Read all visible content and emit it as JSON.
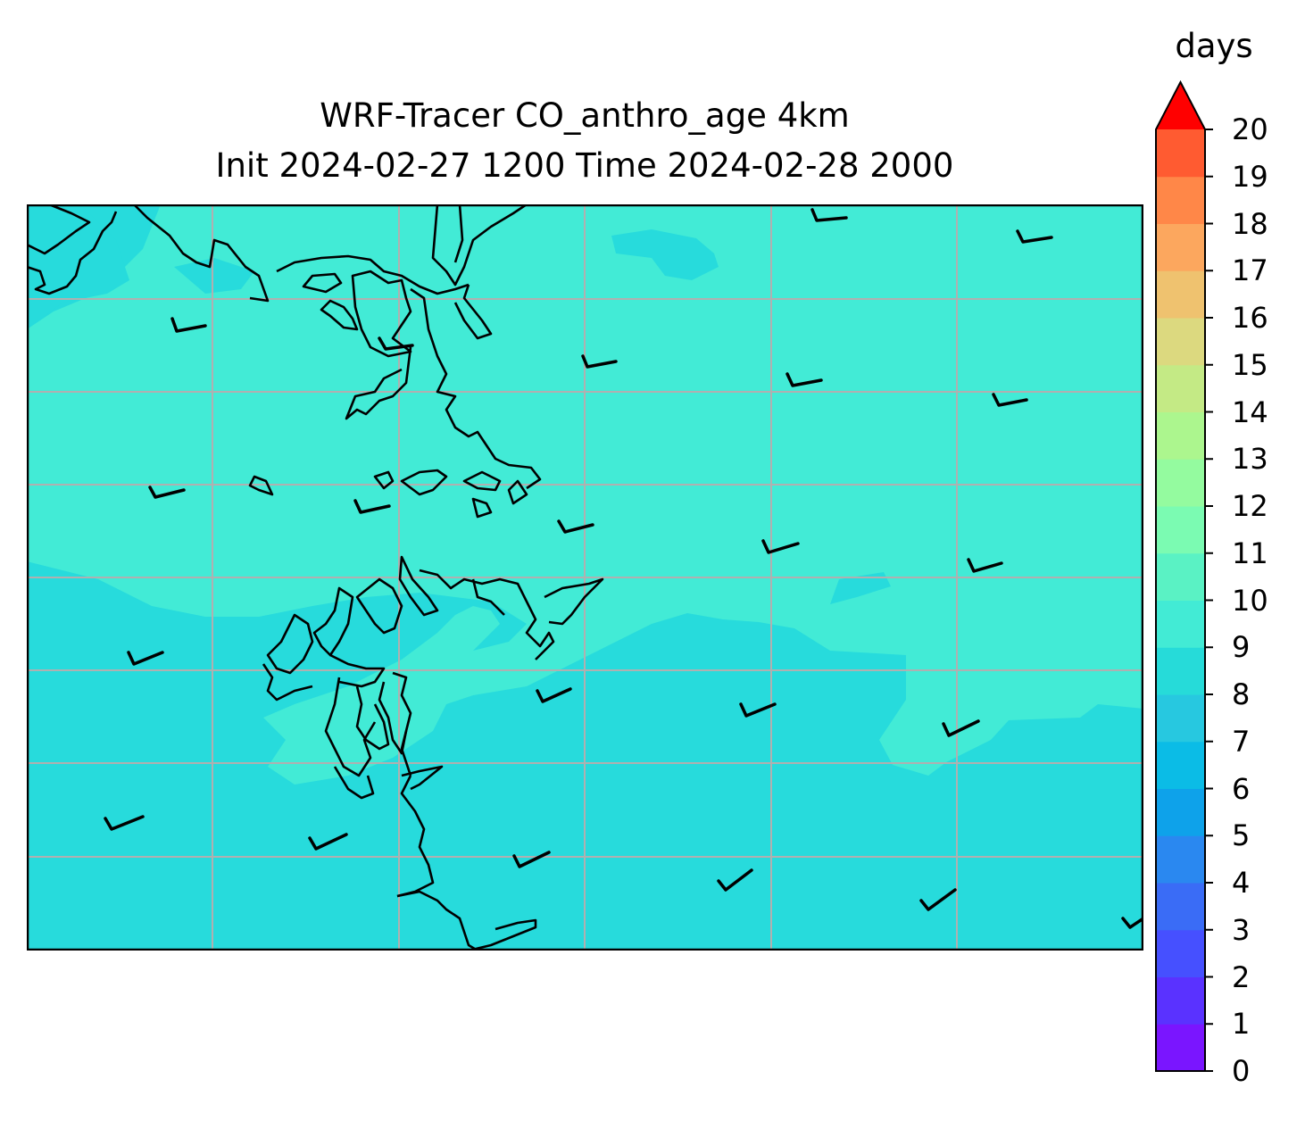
{
  "title": {
    "line1": "WRF-Tracer CO_anthro_age 4km",
    "line2": "Init 2024-02-27 1200 Time 2024-02-28 2000"
  },
  "colorbar": {
    "unit_label": "days",
    "ticks": [
      "0",
      "1",
      "2",
      "3",
      "4",
      "5",
      "6",
      "7",
      "8",
      "9",
      "10",
      "11",
      "12",
      "13",
      "14",
      "15",
      "16",
      "17",
      "18",
      "19",
      "20"
    ],
    "extend": "max",
    "colors": [
      "#7a15ff",
      "#5a32ff",
      "#4650ff",
      "#3a6cf6",
      "#2a88f0",
      "#0ea2ea",
      "#0bbce6",
      "#27c8e0",
      "#26dbd9",
      "#42ebd5",
      "#5af2c4",
      "#7bfbb2",
      "#94fb9f",
      "#acf68e",
      "#c4ea85",
      "#dcd97f",
      "#efc26f",
      "#fca75e",
      "#ff8748",
      "#ff5b31",
      "#ff3a20",
      "#ff0000"
    ]
  },
  "map": {
    "field": "CO_anthro_age",
    "units": "days",
    "background_color": "#27dbdc",
    "secondary_color": "#42ebd6",
    "gridlines": true,
    "coastlines": true,
    "wind_barbs": true
  }
}
